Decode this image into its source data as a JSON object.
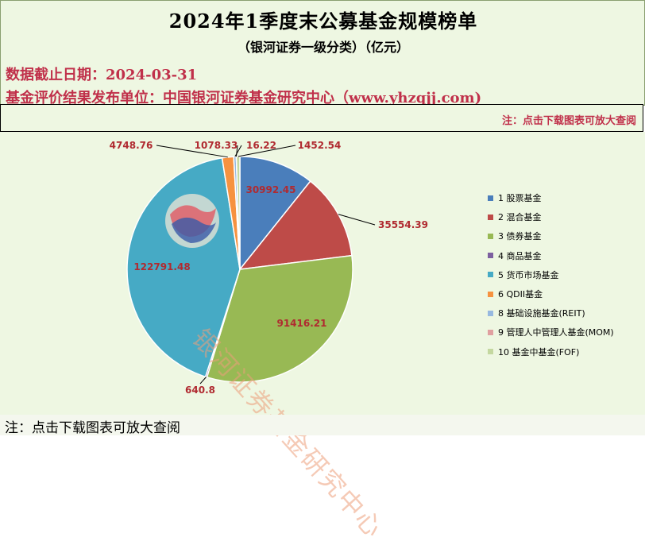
{
  "header": {
    "title": "2024年1季度末公募基金规模榜单",
    "subtitle": "（银河证券一级分类）（亿元）",
    "date_line": "数据截止日期：2024-03-31",
    "publisher_line": "基金评价结果发布单位：中国银河证券基金研究中心（www.yhzqjj.com)"
  },
  "note_top": "注：点击下载图表可放大查阅",
  "footer_note": "注：点击下载图表可放大查阅",
  "watermark": {
    "text": "银河证券基金研究中心"
  },
  "chart_data": {
    "type": "pie",
    "title": "2024年1季度末公募基金规模榜单",
    "legend_position": "right",
    "slices": [
      {
        "name": "1 股票基金",
        "value": 30992.45,
        "label": "30992.45",
        "color": "#4a7ebb"
      },
      {
        "name": "2 混合基金",
        "value": 35554.39,
        "label": "35554.39",
        "color": "#be4b48"
      },
      {
        "name": "3 债券基金",
        "value": 91416.21,
        "label": "91416.21",
        "color": "#98b954"
      },
      {
        "name": "4 商品基金",
        "value": 640.8,
        "label": "640.8",
        "color": "#7d60a0"
      },
      {
        "name": "5 货币市场基金",
        "value": 122791.48,
        "label": "122791.48",
        "color": "#46aac5"
      },
      {
        "name": "6 QDII基金",
        "value": 4748.76,
        "label": "4748.76",
        "color": "#f69240"
      },
      {
        "name": "8 基础设施基金(REIT)",
        "value": 1078.33,
        "label": "1078.33",
        "color": "#97b9e0"
      },
      {
        "name": "9 管理人中管理人基金(MOM)",
        "value": 16.22,
        "label": "16.22",
        "color": "#e0a0a0"
      },
      {
        "name": "10 基金中基金(FOF)",
        "value": 1452.54,
        "label": "1452.54",
        "color": "#c4d8a0"
      }
    ]
  }
}
